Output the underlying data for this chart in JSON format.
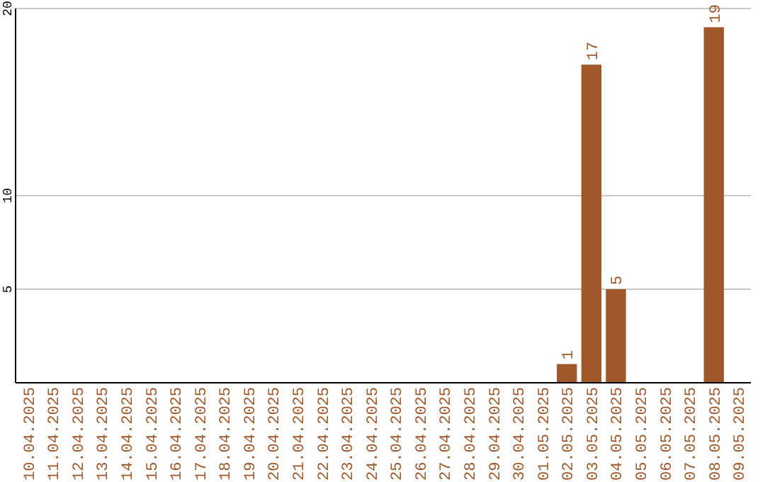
{
  "chart_data": {
    "type": "bar",
    "categories": [
      "10.04.2025",
      "11.04.2025",
      "12.04.2025",
      "13.04.2025",
      "14.04.2025",
      "15.04.2025",
      "16.04.2025",
      "17.04.2025",
      "18.04.2025",
      "19.04.2025",
      "20.04.2025",
      "21.04.2025",
      "22.04.2025",
      "23.04.2025",
      "24.04.2025",
      "25.04.2025",
      "26.04.2025",
      "27.04.2025",
      "28.04.2025",
      "29.04.2025",
      "30.04.2025",
      "01.05.2025",
      "02.05.2025",
      "03.05.2025",
      "04.05.2025",
      "05.05.2025",
      "06.05.2025",
      "07.05.2025",
      "08.05.2025",
      "09.05.2025"
    ],
    "values": [
      0,
      0,
      0,
      0,
      0,
      0,
      0,
      0,
      0,
      0,
      0,
      0,
      0,
      0,
      0,
      0,
      0,
      0,
      0,
      0,
      0,
      0,
      1,
      17,
      5,
      0,
      0,
      0,
      19,
      0
    ],
    "value_labels": [
      null,
      null,
      null,
      null,
      null,
      null,
      null,
      null,
      null,
      null,
      null,
      null,
      null,
      null,
      null,
      null,
      null,
      null,
      null,
      null,
      null,
      null,
      "1",
      "17",
      "5",
      null,
      null,
      null,
      "19",
      null
    ],
    "color": "#a0582a",
    "ylim": [
      0,
      20
    ],
    "yticks": [
      5,
      10,
      20
    ],
    "grid": "y"
  }
}
